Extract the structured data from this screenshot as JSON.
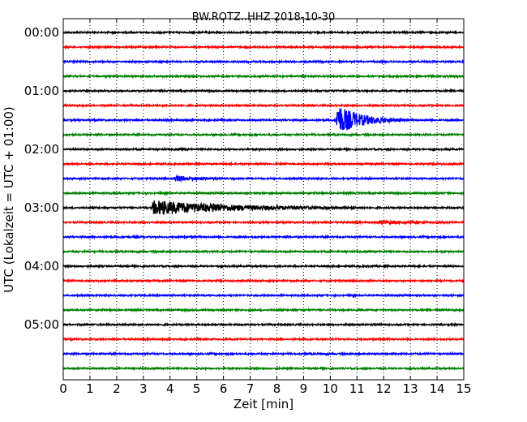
{
  "chart_data": {
    "type": "line",
    "title": "BW.ROTZ..HHZ 2018-10-30",
    "xlabel": "Zeit  [min]",
    "ylabel": "UTC (Lokalzeit = UTC + 01:00)",
    "xlim": [
      0,
      15
    ],
    "x_ticks": [
      "0",
      "1",
      "2",
      "3",
      "4",
      "5",
      "6",
      "7",
      "8",
      "9",
      "10",
      "11",
      "12",
      "13",
      "14",
      "15"
    ],
    "y_ticks": [
      "00:00",
      "01:00",
      "02:00",
      "03:00",
      "04:00",
      "05:00"
    ],
    "trace_interval_min": 15,
    "trace_count": 24,
    "trace_colors": [
      "#000000",
      "#ff0000",
      "#0000ff",
      "#008000"
    ],
    "grid": "vertical-dotted",
    "events": [
      {
        "trace": 2,
        "start_min": 0.0,
        "duration_min": 0.3,
        "amp": 1.5
      },
      {
        "trace": 6,
        "start_min": 10.2,
        "duration_min": 2.5,
        "amp": 20
      },
      {
        "trace": 8,
        "start_min": 4.4,
        "duration_min": 0.3,
        "amp": 1.2
      },
      {
        "trace": 10,
        "start_min": 4.1,
        "duration_min": 2.5,
        "amp": 3.5
      },
      {
        "trace": 12,
        "start_min": 3.3,
        "duration_min": 8.0,
        "amp": 9
      },
      {
        "trace": 12,
        "start_min": 5.5,
        "duration_min": 2.0,
        "amp": 7
      },
      {
        "trace": 13,
        "start_min": 11.8,
        "duration_min": 3.0,
        "amp": 2
      },
      {
        "trace": 14,
        "start_min": 2.6,
        "duration_min": 0.6,
        "amp": 1.5
      },
      {
        "trace": 20,
        "start_min": 11.6,
        "duration_min": 0.3,
        "amp": 1.5
      }
    ]
  }
}
